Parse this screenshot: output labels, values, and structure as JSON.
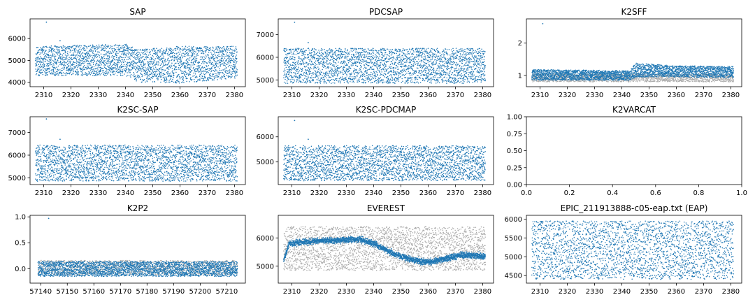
{
  "colors": {
    "primary": "#1f77b4",
    "reference": "#aaaaaa"
  },
  "chart_data": [
    {
      "type": "scatter",
      "title": "SAP",
      "xlim": [
        2305,
        2384
      ],
      "ylim": [
        3800,
        6900
      ],
      "xticks": [
        2310,
        2320,
        2330,
        2340,
        2350,
        2360,
        2370,
        2380
      ],
      "yticks": [
        4000,
        5000,
        6000
      ],
      "series": [
        {
          "kind": "band",
          "color_key": "primary",
          "x_range": [
            2307,
            2381
          ],
          "n": 2600,
          "band": [
            [
              2307,
              4300,
              5650
            ],
            [
              2340,
              4300,
              5750
            ],
            [
              2345,
              4000,
              5500
            ],
            [
              2360,
              3950,
              5650
            ],
            [
              2381,
              4200,
              5650
            ]
          ],
          "outliers": [
            [
              2311,
              6750
            ],
            [
              2316,
              5900
            ]
          ]
        }
      ]
    },
    {
      "type": "scatter",
      "title": "PDCSAP",
      "xlim": [
        2305,
        2384
      ],
      "ylim": [
        4700,
        7700
      ],
      "xticks": [
        2310,
        2320,
        2330,
        2340,
        2350,
        2360,
        2370,
        2380
      ],
      "yticks": [
        5000,
        6000,
        7000
      ],
      "series": [
        {
          "kind": "band",
          "color_key": "primary",
          "x_range": [
            2307,
            2381
          ],
          "n": 2600,
          "band": [
            [
              2307,
              4850,
              6400
            ],
            [
              2381,
              4850,
              6400
            ]
          ],
          "outliers": [
            [
              2311,
              7550
            ],
            [
              2316,
              6650
            ]
          ]
        }
      ]
    },
    {
      "type": "scatter",
      "title": "K2SFF",
      "xlim": [
        2305,
        2384
      ],
      "ylim": [
        0.65,
        2.75
      ],
      "xticks": [
        2310,
        2320,
        2330,
        2340,
        2350,
        2360,
        2370,
        2380
      ],
      "yticks": [
        1,
        2
      ],
      "series": [
        {
          "kind": "band",
          "color_key": "reference",
          "x_range": [
            2307,
            2381
          ],
          "n": 1500,
          "band": [
            [
              2307,
              0.8,
              1.05
            ],
            [
              2381,
              0.8,
              1.05
            ]
          ]
        },
        {
          "kind": "band",
          "color_key": "primary",
          "x_range": [
            2307,
            2381
          ],
          "n": 2600,
          "band": [
            [
              2307,
              0.85,
              1.18
            ],
            [
              2343,
              0.85,
              1.15
            ],
            [
              2345,
              0.95,
              1.38
            ],
            [
              2360,
              0.95,
              1.3
            ],
            [
              2381,
              0.92,
              1.28
            ]
          ],
          "outliers": [
            [
              2311,
              2.6
            ]
          ]
        }
      ]
    },
    {
      "type": "scatter",
      "title": "K2SC-SAP",
      "xlim": [
        2305,
        2384
      ],
      "ylim": [
        4700,
        7700
      ],
      "xticks": [
        2310,
        2320,
        2330,
        2340,
        2350,
        2360,
        2370,
        2380
      ],
      "yticks": [
        5000,
        6000,
        7000
      ],
      "series": [
        {
          "kind": "band",
          "color_key": "primary",
          "x_range": [
            2307,
            2381
          ],
          "n": 2600,
          "band": [
            [
              2307,
              4850,
              6450
            ],
            [
              2381,
              4850,
              6450
            ]
          ],
          "outliers": [
            [
              2311,
              7600
            ],
            [
              2316,
              6700
            ]
          ]
        }
      ]
    },
    {
      "type": "scatter",
      "title": "K2SC-PDCMAP",
      "xlim": [
        2305,
        2384
      ],
      "ylim": [
        4100,
        6800
      ],
      "xticks": [
        2310,
        2320,
        2330,
        2340,
        2350,
        2360,
        2370,
        2380
      ],
      "yticks": [
        5000,
        6000
      ],
      "series": [
        {
          "kind": "band",
          "color_key": "primary",
          "x_range": [
            2307,
            2381
          ],
          "n": 2600,
          "band": [
            [
              2307,
              4250,
              5650
            ],
            [
              2381,
              4250,
              5650
            ]
          ],
          "outliers": [
            [
              2311,
              6650
            ],
            [
              2316,
              5900
            ]
          ]
        }
      ]
    },
    {
      "type": "scatter",
      "title": "K2VARCAT",
      "xlim": [
        0,
        1
      ],
      "ylim": [
        0,
        1
      ],
      "xticks": [
        0.0,
        0.2,
        0.4,
        0.6,
        0.8,
        1.0
      ],
      "yticks": [
        0.0,
        0.25,
        0.5,
        0.75,
        1.0
      ],
      "xtick_labels": [
        "0.0",
        "0.2",
        "0.4",
        "0.6",
        "0.8",
        "1.0"
      ],
      "ytick_labels": [
        "0.00",
        "0.25",
        "0.50",
        "0.75",
        "1.00"
      ],
      "series": []
    },
    {
      "type": "scatter",
      "title": "K2P2",
      "xlim": [
        57136,
        57217
      ],
      "ylim": [
        -0.28,
        1.03
      ],
      "xticks": [
        57140,
        57150,
        57160,
        57170,
        57180,
        57190,
        57200,
        57210
      ],
      "yticks": [
        0.0,
        0.5,
        1.0
      ],
      "ytick_labels": [
        "0.0",
        "0.5",
        "1.0"
      ],
      "series": [
        {
          "kind": "band",
          "color_key": "reference",
          "x_range": [
            57139,
            57214
          ],
          "n": 1200,
          "band": [
            [
              57139,
              -0.12,
              0.16
            ],
            [
              57214,
              -0.12,
              0.16
            ]
          ]
        },
        {
          "kind": "band",
          "color_key": "primary",
          "x_range": [
            57139,
            57214
          ],
          "n": 2600,
          "band": [
            [
              57139,
              -0.15,
              0.14
            ],
            [
              57214,
              -0.15,
              0.14
            ]
          ],
          "outliers": [
            [
              57143,
              0.97
            ]
          ]
        }
      ]
    },
    {
      "type": "scatter",
      "title": "EVEREST",
      "xlim": [
        2305,
        2384
      ],
      "ylim": [
        4400,
        6800
      ],
      "xticks": [
        2310,
        2320,
        2330,
        2340,
        2350,
        2360,
        2370,
        2380
      ],
      "yticks": [
        5000,
        6000
      ],
      "series": [
        {
          "kind": "band",
          "color_key": "reference",
          "x_range": [
            2307,
            2381
          ],
          "n": 2600,
          "band": [
            [
              2307,
              4850,
              6400
            ],
            [
              2381,
              4850,
              6400
            ]
          ]
        },
        {
          "kind": "trend",
          "color_key": "primary",
          "x_range": [
            2307,
            2381
          ],
          "n": 2600,
          "spread": 260,
          "trend": [
            [
              2307,
              5200
            ],
            [
              2309,
              5800
            ],
            [
              2320,
              5900
            ],
            [
              2335,
              5950
            ],
            [
              2340,
              5800
            ],
            [
              2345,
              5550
            ],
            [
              2350,
              5350
            ],
            [
              2355,
              5200
            ],
            [
              2360,
              5150
            ],
            [
              2366,
              5250
            ],
            [
              2372,
              5400
            ],
            [
              2381,
              5350
            ]
          ]
        }
      ]
    },
    {
      "type": "scatter",
      "title": "EPIC_211913888-c05-eap.txt (EAP)",
      "xlim": [
        2305,
        2384
      ],
      "ylim": [
        4300,
        6100
      ],
      "xticks": [
        2310,
        2320,
        2330,
        2340,
        2350,
        2360,
        2370,
        2380
      ],
      "yticks": [
        4500,
        5000,
        5500,
        6000
      ],
      "series": [
        {
          "kind": "band",
          "color_key": "primary",
          "x_range": [
            2307,
            2381
          ],
          "n": 2600,
          "band": [
            [
              2307,
              4400,
              5950
            ],
            [
              2381,
              4400,
              5950
            ]
          ]
        }
      ]
    }
  ]
}
